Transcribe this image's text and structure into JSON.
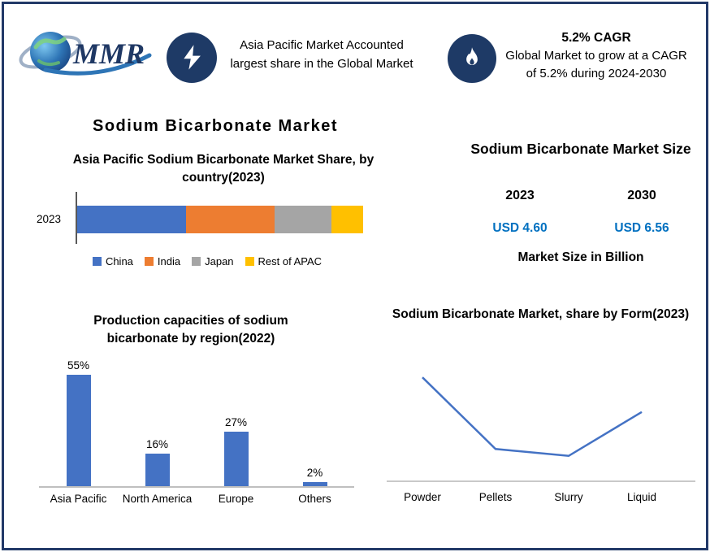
{
  "colors": {
    "navy": "#1E3A66",
    "frame_border": "#223968",
    "title_blue": "#0F6AA0",
    "usd_blue": "#0070C0",
    "axis_gray": "#BFBFBF"
  },
  "header": {
    "logo_text": "MMR",
    "left_callout": "Asia Pacific Market Accounted largest share in the Global Market",
    "cagr_heading": "5.2% CAGR",
    "cagr_body": "Global Market to grow at a CAGR of 5.2% during 2024-2030"
  },
  "main_title": "Sodium Bicarbonate Market",
  "market_size": {
    "title": "Sodium Bicarbonate Market Size",
    "year_left": "2023",
    "year_right": "2030",
    "value_left": "USD 4.60",
    "value_right": "USD 6.56",
    "note": "Market Size in Billion"
  },
  "chart_data": [
    {
      "type": "bar",
      "variant": "stacked-horizontal",
      "title": "Asia Pacific Sodium Bicarbonate Market Share, by country(2023)",
      "categories": [
        "2023"
      ],
      "series": [
        {
          "name": "China",
          "values": [
            38
          ],
          "color": "#4472C4"
        },
        {
          "name": "India",
          "values": [
            31
          ],
          "color": "#ED7D31"
        },
        {
          "name": "Japan",
          "values": [
            20
          ],
          "color": "#A5A5A5"
        },
        {
          "name": "Rest of APAC",
          "values": [
            11
          ],
          "color": "#FFC000"
        }
      ],
      "unit": "percent share (estimated from bar widths)",
      "legend_position": "bottom"
    },
    {
      "type": "bar",
      "title": "Production capacities of sodium bicarbonate by region(2022)",
      "categories": [
        "Asia Pacific",
        "North America",
        "Europe",
        "Others"
      ],
      "values": [
        55,
        16,
        27,
        2
      ],
      "data_labels": [
        "55%",
        "16%",
        "27%",
        "2%"
      ],
      "bar_color": "#4472C4",
      "ylim": [
        0,
        60
      ],
      "grid": false,
      "legend": false
    },
    {
      "type": "line",
      "title": "Sodium Bicarbonate Market, share by Form(2023)",
      "categories": [
        "Powder",
        "Pellets",
        "Slurry",
        "Liquid"
      ],
      "values": [
        45,
        14,
        11,
        30
      ],
      "unit": "percent share (estimated, no value labels shown)",
      "line_color": "#4472C4",
      "ylim": [
        0,
        50
      ],
      "grid": false,
      "legend": false
    }
  ]
}
